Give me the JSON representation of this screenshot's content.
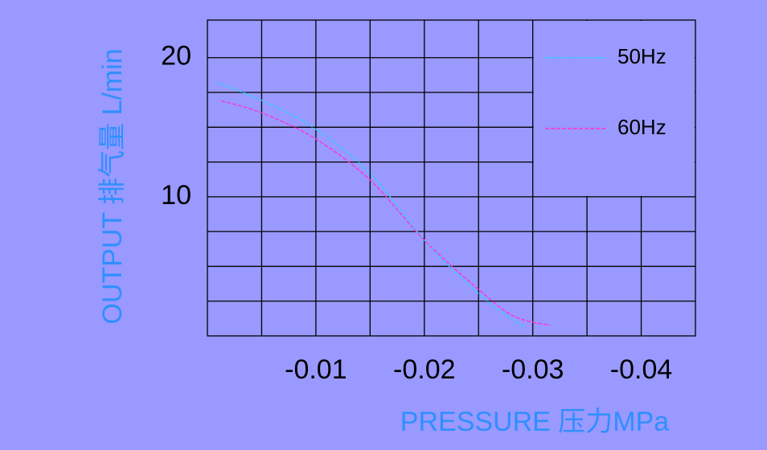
{
  "chart_data": {
    "type": "line",
    "x_label": "PRESSURE 压力MPa",
    "y_label": "OUTPUT 排气量 L/min",
    "xlim": [
      0,
      -0.045
    ],
    "xticks": [
      -0.01,
      -0.02,
      -0.03,
      -0.04
    ],
    "xgrid": [
      -0.005,
      -0.01,
      -0.015,
      -0.02,
      -0.025,
      -0.03,
      -0.035,
      -0.04
    ],
    "ylim": [
      0,
      22.7
    ],
    "yticks": [
      10,
      20
    ],
    "ygrid": [
      2.5,
      5,
      7.5,
      10,
      12.5,
      15,
      17.5,
      20
    ],
    "grid": true,
    "legend": "upper right",
    "series": [
      {
        "name": "50Hz",
        "color": "#33ccff",
        "x": [
          -0.0009,
          -0.0051,
          -0.0099,
          -0.015,
          -0.0201,
          -0.0252,
          -0.0292
        ],
        "values": [
          18.2,
          16.9,
          14.9,
          11.7,
          6.8,
          2.9,
          0.6
        ]
      },
      {
        "name": "60Hz",
        "color": "#ff33cc",
        "x": [
          -0.0013,
          -0.0051,
          -0.0099,
          -0.015,
          -0.0201,
          -0.0252,
          -0.0283,
          -0.0316
        ],
        "values": [
          16.9,
          16.0,
          14.2,
          11.2,
          6.8,
          3.2,
          1.4,
          0.75
        ]
      }
    ]
  }
}
